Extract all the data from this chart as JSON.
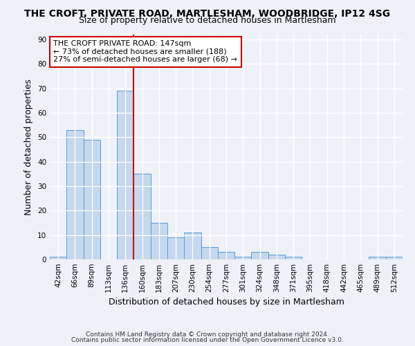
{
  "title": "THE CROFT, PRIVATE ROAD, MARTLESHAM, WOODBRIDGE, IP12 4SG",
  "subtitle": "Size of property relative to detached houses in Martlesham",
  "xlabel": "Distribution of detached houses by size in Martlesham",
  "ylabel": "Number of detached properties",
  "bin_labels": [
    "42sqm",
    "66sqm",
    "89sqm",
    "113sqm",
    "136sqm",
    "160sqm",
    "183sqm",
    "207sqm",
    "230sqm",
    "254sqm",
    "277sqm",
    "301sqm",
    "324sqm",
    "348sqm",
    "371sqm",
    "395sqm",
    "418sqm",
    "442sqm",
    "465sqm",
    "489sqm",
    "512sqm"
  ],
  "bar_values": [
    1,
    53,
    49,
    0,
    69,
    35,
    15,
    9,
    11,
    5,
    3,
    1,
    3,
    2,
    1,
    0,
    0,
    0,
    0,
    1,
    1
  ],
  "bar_color": "#c5d8ed",
  "bar_edge_color": "#5b9bd5",
  "vline_x": 4.5,
  "vline_color": "#cc0000",
  "annotation_text": "THE CROFT PRIVATE ROAD: 147sqm\n← 73% of detached houses are smaller (188)\n27% of semi-detached houses are larger (68) →",
  "annotation_box_color": "white",
  "annotation_box_edge": "#cc0000",
  "ylim": [
    0,
    92
  ],
  "yticks": [
    0,
    10,
    20,
    30,
    40,
    50,
    60,
    70,
    80,
    90
  ],
  "footer_line1": "Contains HM Land Registry data © Crown copyright and database right 2024.",
  "footer_line2": "Contains public sector information licensed under the Open Government Licence v3.0.",
  "background_color": "#eef2f8",
  "grid_color": "white",
  "title_fontsize": 10,
  "subtitle_fontsize": 9,
  "axis_label_fontsize": 9,
  "tick_fontsize": 7.5,
  "footer_fontsize": 6.5
}
